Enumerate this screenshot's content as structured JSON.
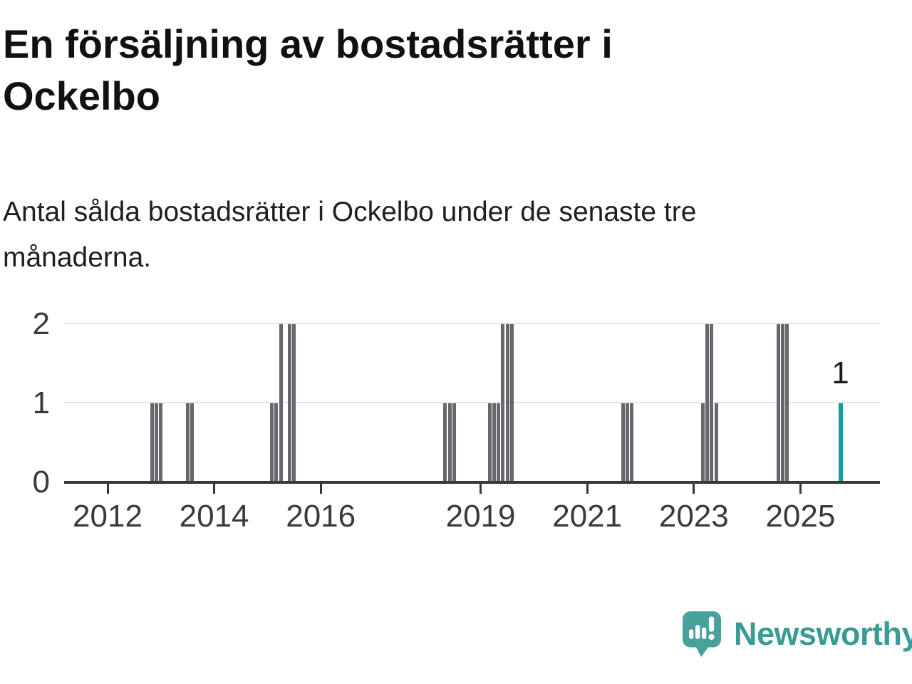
{
  "header": {
    "title_lines": [
      "En försäljning av bostadsrätter i",
      "Ockelbo"
    ],
    "subtitle_lines": [
      "Antal sålda bostadsrätter i Ockelbo under de senaste tre",
      "månaderna."
    ]
  },
  "chart_data": {
    "type": "bar",
    "title": "En försäljning av bostadsrätter i Ockelbo",
    "subtitle": "Antal sålda bostadsrätter i Ockelbo under de senaste tre månaderna.",
    "xlabel": "",
    "ylabel": "",
    "ylim": [
      0,
      2
    ],
    "y_ticks": [
      "0",
      "1",
      "2"
    ],
    "y_gridlines": [
      1,
      2
    ],
    "x_tick_years": [
      "2012",
      "2014",
      "2016",
      "2019",
      "2021",
      "2023",
      "2025"
    ],
    "legend": "none",
    "bar_color": "#67676e",
    "highlight_color": "#12a09e",
    "grid_color": "#e3e3e3",
    "axis_color": "#383838",
    "annotation": {
      "text": "1",
      "month": "2025-10"
    },
    "series": [
      {
        "month": "2012-11",
        "value": 1
      },
      {
        "month": "2012-12",
        "value": 1
      },
      {
        "month": "2013-01",
        "value": 1
      },
      {
        "month": "2013-07",
        "value": 1
      },
      {
        "month": "2013-08",
        "value": 1
      },
      {
        "month": "2015-02",
        "value": 1
      },
      {
        "month": "2015-03",
        "value": 1
      },
      {
        "month": "2015-04",
        "value": 2
      },
      {
        "month": "2015-06",
        "value": 2
      },
      {
        "month": "2015-07",
        "value": 2
      },
      {
        "month": "2018-05",
        "value": 1
      },
      {
        "month": "2018-06",
        "value": 1
      },
      {
        "month": "2018-07",
        "value": 1
      },
      {
        "month": "2019-03",
        "value": 1
      },
      {
        "month": "2019-04",
        "value": 1
      },
      {
        "month": "2019-05",
        "value": 1
      },
      {
        "month": "2019-06",
        "value": 2
      },
      {
        "month": "2019-07",
        "value": 2
      },
      {
        "month": "2019-08",
        "value": 2
      },
      {
        "month": "2021-09",
        "value": 1
      },
      {
        "month": "2021-10",
        "value": 1
      },
      {
        "month": "2021-11",
        "value": 1
      },
      {
        "month": "2023-03",
        "value": 1
      },
      {
        "month": "2023-04",
        "value": 2
      },
      {
        "month": "2023-05",
        "value": 2
      },
      {
        "month": "2023-06",
        "value": 1
      },
      {
        "month": "2024-08",
        "value": 2
      },
      {
        "month": "2024-09",
        "value": 2
      },
      {
        "month": "2024-10",
        "value": 2
      },
      {
        "month": "2025-10",
        "value": 1,
        "highlight": true
      }
    ]
  },
  "logo": {
    "text": "Newsworthy",
    "text_color": "#3a9a94",
    "bubble_color": "#4aa19b"
  }
}
